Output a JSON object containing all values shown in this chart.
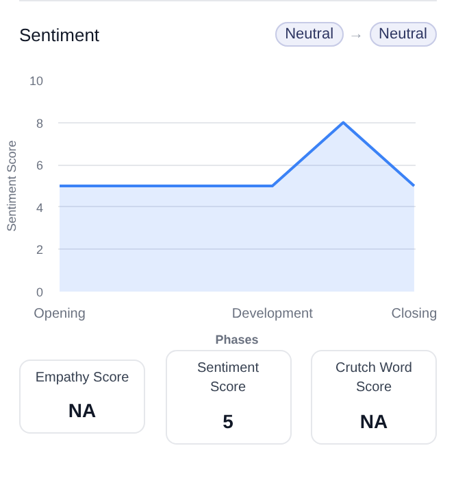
{
  "chart_data": {
    "type": "area",
    "title": "Sentiment",
    "categories": [
      "Opening",
      null,
      null,
      "Development",
      null,
      "Closing"
    ],
    "series": [
      {
        "color": "#3b82f6",
        "values": [
          5,
          5,
          5,
          5,
          8,
          5
        ]
      }
    ],
    "ylabel": "Sentiment Score",
    "xlabel": "Phases",
    "ylim": [
      0,
      10
    ],
    "yticks": [
      0,
      2,
      4,
      6,
      8,
      10
    ],
    "grid": "y",
    "marker": "none",
    "line_style": "solid",
    "annotations": [
      "Neutral",
      "→",
      "Neutral",
      "Empathy Score",
      "NA",
      "Sentiment Score",
      "5",
      "Crutch Word Score",
      "NA"
    ]
  }
}
